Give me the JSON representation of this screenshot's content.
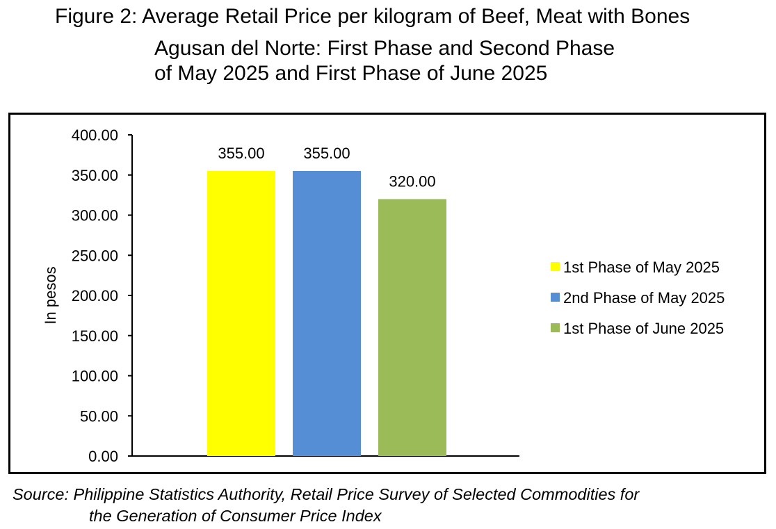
{
  "figure": {
    "title_lines": [
      "Figure 2: Average Retail Price per kilogram of Beef, Meat with Bones",
      "Agusan del Norte: First Phase and Second Phase",
      "of May 2025 and First Phase of June 2025"
    ],
    "source_lines": [
      "Source: Philippine Statistics Authority, Retail Price Survey of Selected Commodities for",
      "the Generation of Consumer Price Index"
    ]
  },
  "chart_data": {
    "type": "bar",
    "title": "Figure 2: Average Retail Price per kilogram of Beef, Meat with Bones Agusan del Norte: First Phase and Second Phase of May 2025 and First Phase of June 2025",
    "xlabel": "",
    "ylabel": "In pesos",
    "ylim": [
      0,
      400
    ],
    "y_ticks": [
      "0.00",
      "50.00",
      "100.00",
      "150.00",
      "200.00",
      "250.00",
      "300.00",
      "350.00",
      "400.00"
    ],
    "grid": false,
    "legend_position": "right",
    "series": [
      {
        "name": "1st Phase of May 2025",
        "value": 355,
        "label": "355.00",
        "color": "#FFFF00"
      },
      {
        "name": "2nd Phase of May 2025",
        "value": 355,
        "label": "355.00",
        "color": "#558ED5"
      },
      {
        "name": "1st Phase of June 2025",
        "value": 320,
        "label": "320.00",
        "color": "#9BBB59"
      }
    ]
  }
}
